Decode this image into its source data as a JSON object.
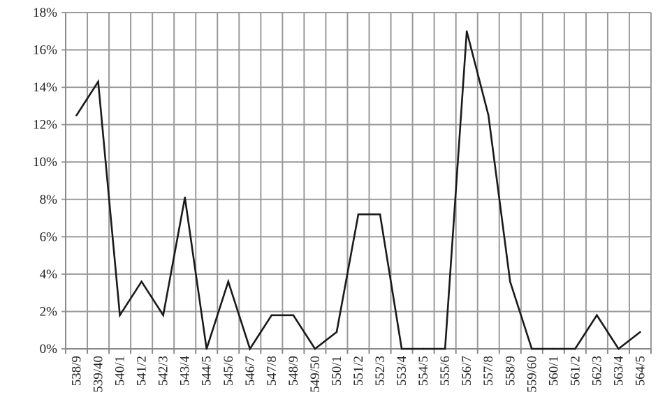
{
  "chart_data": {
    "type": "line",
    "title": "",
    "xlabel": "",
    "ylabel": "",
    "categories": [
      "538/9",
      "539/40",
      "540/1",
      "541/2",
      "542/3",
      "543/4",
      "544/5",
      "545/6",
      "546/7",
      "547/8",
      "548/9",
      "549/50",
      "550/1",
      "551/2",
      "552/3",
      "553/4",
      "554/5",
      "555/6",
      "556/7",
      "557/8",
      "558/9",
      "559/60",
      "560/1",
      "561/2",
      "562/3",
      "563/4",
      "564/5"
    ],
    "series": [
      {
        "values": [
          12.5,
          14.3,
          1.8,
          3.6,
          1.8,
          8.1,
          0,
          3.6,
          0,
          1.8,
          1.8,
          0,
          0.9,
          7.2,
          7.2,
          0,
          0,
          0,
          17.0,
          12.5,
          3.6,
          0,
          0,
          0,
          1.8,
          0,
          0.9
        ]
      }
    ],
    "ylim": [
      0,
      18
    ],
    "y_ticks": [
      "0%",
      "2%",
      "4%",
      "6%",
      "8%",
      "10%",
      "12%",
      "14%",
      "16%",
      "18%"
    ],
    "y_unit": "%",
    "grid": true,
    "legend": "none",
    "colors": {
      "line": "#1a1a1a",
      "grid": "#9a9a9a"
    }
  }
}
